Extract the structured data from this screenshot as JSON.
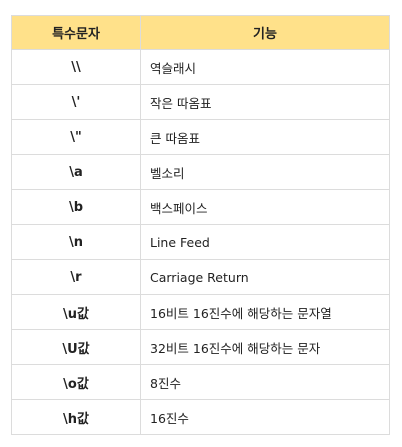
{
  "table": {
    "headers": [
      "특수문자",
      "기능"
    ],
    "rows": [
      {
        "char": "\\\\",
        "func": "역슬래시"
      },
      {
        "char": "\\'",
        "func": "작은 따옴표"
      },
      {
        "char": "\\\"",
        "func": "큰 따옴표"
      },
      {
        "char": "\\a",
        "func": "벨소리"
      },
      {
        "char": "\\b",
        "func": "백스페이스"
      },
      {
        "char": "\\n",
        "func": "Line Feed"
      },
      {
        "char": "\\r",
        "func": "Carriage Return"
      },
      {
        "char": "\\u값",
        "func": "16비트 16진수에 해당하는 문자열"
      },
      {
        "char": "\\U값",
        "func": "32비트 16진수에 해당하는 문자"
      },
      {
        "char": "\\o값",
        "func": "8진수"
      },
      {
        "char": "\\h값",
        "func": "16진수"
      }
    ]
  },
  "colors": {
    "header_background": "#ffe18a",
    "border": "#dcdcdc",
    "text": "#222222"
  }
}
